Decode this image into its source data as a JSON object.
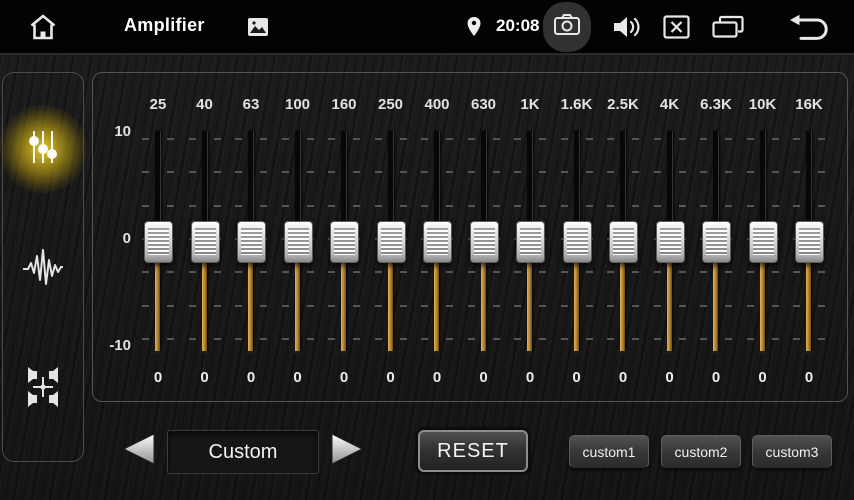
{
  "topbar": {
    "title": "Amplifier",
    "time": "20:08",
    "icons": [
      "home-icon",
      "gallery-icon",
      "location-pin-icon",
      "camera-icon",
      "volume-icon",
      "close-box-icon",
      "recent-apps-icon",
      "back-icon"
    ]
  },
  "sidebar": {
    "items": [
      {
        "name": "equalizer",
        "icon": "eq-sliders-icon",
        "active": true
      },
      {
        "name": "effects",
        "icon": "waveform-icon",
        "active": false
      },
      {
        "name": "balance-fader",
        "icon": "four-speakers-icon",
        "active": false
      }
    ]
  },
  "eq": {
    "scale": {
      "max": "10",
      "mid": "0",
      "min": "-10"
    },
    "range": [
      -10,
      10
    ],
    "bands": [
      {
        "freq": "25",
        "value": "0"
      },
      {
        "freq": "40",
        "value": "0"
      },
      {
        "freq": "63",
        "value": "0"
      },
      {
        "freq": "100",
        "value": "0"
      },
      {
        "freq": "160",
        "value": "0"
      },
      {
        "freq": "250",
        "value": "0"
      },
      {
        "freq": "400",
        "value": "0"
      },
      {
        "freq": "630",
        "value": "0"
      },
      {
        "freq": "1K",
        "value": "0"
      },
      {
        "freq": "1.6K",
        "value": "0"
      },
      {
        "freq": "2.5K",
        "value": "0"
      },
      {
        "freq": "4K",
        "value": "0"
      },
      {
        "freq": "6.3K",
        "value": "0"
      },
      {
        "freq": "10K",
        "value": "0"
      },
      {
        "freq": "16K",
        "value": "0"
      }
    ]
  },
  "presets": {
    "selected": "Custom",
    "reset_label": "RESET",
    "custom_buttons": [
      "custom1",
      "custom2",
      "custom3"
    ]
  },
  "colors": {
    "accent_glow": "#e6cd28",
    "slider_gold": "#b28431",
    "panel_border": "#545454",
    "background": "#181818"
  }
}
